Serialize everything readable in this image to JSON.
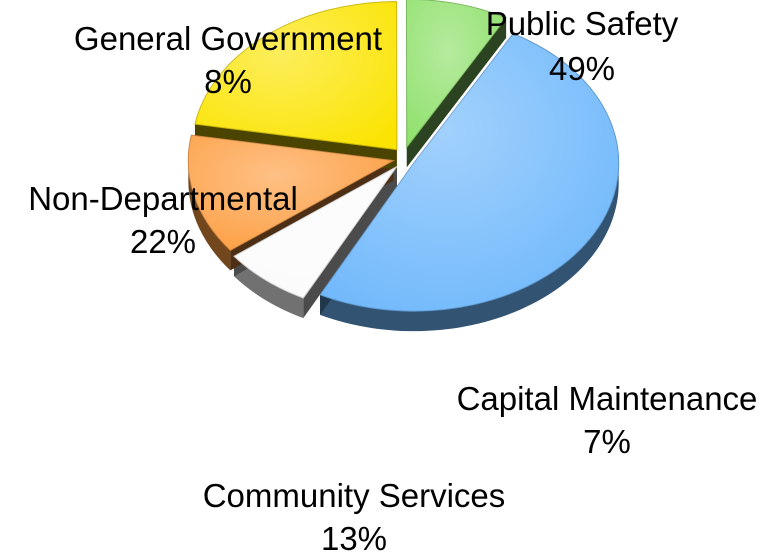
{
  "chart_data": {
    "type": "pie",
    "style": "3d-exploded",
    "slices": [
      {
        "name": "Public Safety",
        "value": 49,
        "label": "49%",
        "color": "#6fb8fb"
      },
      {
        "name": "Capital Maintenance",
        "value": 7,
        "label": "7%",
        "color": "#fbfbfb"
      },
      {
        "name": "Community Services",
        "value": 13,
        "label": "13%",
        "color": "#fd9e42"
      },
      {
        "name": "Non-Departmental",
        "value": 22,
        "label": "22%",
        "color": "#fbe404"
      },
      {
        "name": "General Government",
        "value": 8,
        "label": "8%",
        "color": "#8ee06a"
      }
    ]
  }
}
